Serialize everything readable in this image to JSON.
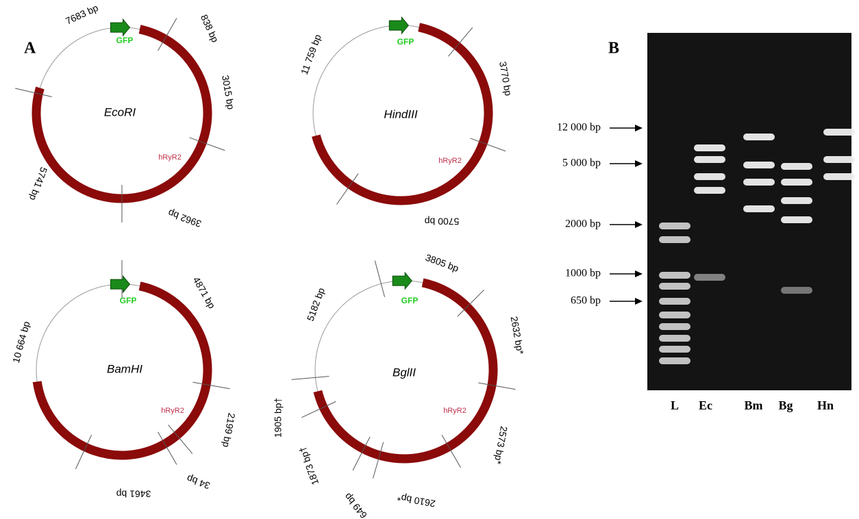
{
  "panel_labels": [
    "A",
    "B"
  ],
  "plasmids": [
    {
      "enzyme": "EcoRI",
      "gene": "GFP",
      "insert": "hRyR2",
      "fragments": [
        "7683 bp",
        "838 bp",
        "3015 bp",
        "3962 bp",
        "5741 bp"
      ]
    },
    {
      "enzyme": "HindIII",
      "gene": "GFP",
      "insert": "hRyR2",
      "fragments": [
        "11 759 bp",
        "3770 bp",
        "5700 bp"
      ]
    },
    {
      "enzyme": "BamHI",
      "gene": "GFP",
      "insert": "hRyR2",
      "fragments": [
        "4871 bp",
        "2199 bp",
        "34 bp",
        "3461 bp",
        "10 664 bp"
      ]
    },
    {
      "enzyme": "BglII",
      "gene": "GFP",
      "insert": "hRyR2",
      "fragments": [
        "3805 bp",
        "2632 bp*",
        "2573 bp*",
        "2610 bp*",
        "649 bp",
        "1873 bp†",
        "1905 bp†",
        "5182 bp"
      ]
    }
  ],
  "gel": {
    "markers": [
      "12 000 bp",
      "5 000 bp",
      "2000 bp",
      "1000 bp",
      "650 bp"
    ],
    "lanes": [
      "L",
      "Ec",
      "Bm",
      "Bg",
      "Hn"
    ]
  }
}
